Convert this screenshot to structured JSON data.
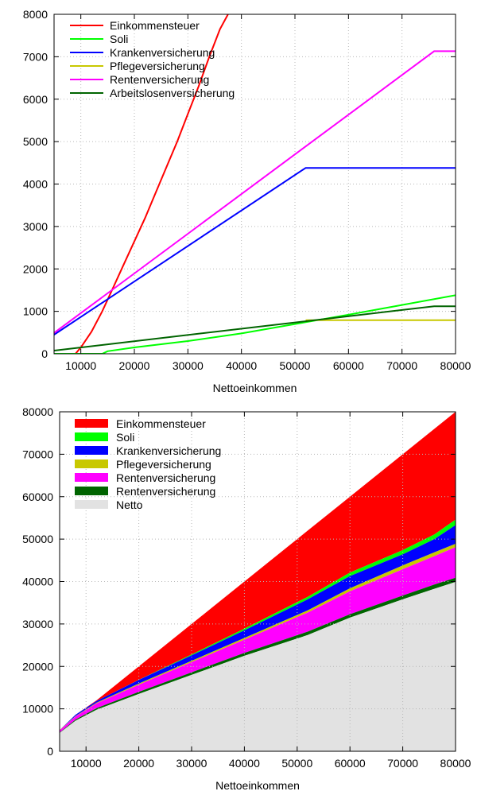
{
  "chart_data": [
    {
      "type": "line",
      "xlabel": "Nettoeinkommen",
      "ylabel": "",
      "xlim": [
        5000,
        80000
      ],
      "ylim": [
        0,
        8000
      ],
      "xticks": [
        "10000",
        "20000",
        "30000",
        "40000",
        "50000",
        "60000",
        "70000",
        "80000"
      ],
      "yticks": [
        "0",
        "1000",
        "2000",
        "3000",
        "4000",
        "5000",
        "6000",
        "7000",
        "8000"
      ],
      "grid": true,
      "legend_position": "top-left",
      "series": [
        {
          "name": "Einkommensteuer",
          "color": "#ff0000",
          "x": [
            9000,
            10000,
            12000,
            14000,
            16000,
            18000,
            20000,
            22000,
            24000,
            26000,
            28000,
            30000,
            32000,
            34000,
            36000,
            37500
          ],
          "y": [
            0,
            150,
            520,
            1000,
            1550,
            2100,
            2650,
            3200,
            3800,
            4400,
            5000,
            5650,
            6300,
            7000,
            7650,
            8000
          ]
        },
        {
          "name": "Soli",
          "color": "#00ff00",
          "x": [
            5000,
            14000,
            15000,
            20000,
            30000,
            40000,
            50000,
            60000,
            70000,
            80000
          ],
          "y": [
            0,
            0,
            60,
            150,
            300,
            480,
            700,
            920,
            1150,
            1380
          ]
        },
        {
          "name": "Krankenversicherung",
          "color": "#0000ff",
          "x": [
            5000,
            52000,
            80000
          ],
          "y": [
            450,
            4380,
            4380
          ]
        },
        {
          "name": "Pflegeversicherung",
          "color": "#c8c800",
          "x": [
            52000,
            80000
          ],
          "y": [
            790,
            790
          ]
        },
        {
          "name": "Rentenversicherung",
          "color": "#ff00ff",
          "x": [
            5000,
            76000,
            80000
          ],
          "y": [
            490,
            7130,
            7130
          ]
        },
        {
          "name": "Arbeitslosenversicherung",
          "color": "#006400",
          "x": [
            5000,
            76000,
            80000
          ],
          "y": [
            75,
            1120,
            1120
          ]
        }
      ]
    },
    {
      "type": "area",
      "xlabel": "Nettoeinkommen",
      "ylabel": "",
      "xlim": [
        5000,
        80000
      ],
      "ylim": [
        0,
        80000
      ],
      "xticks": [
        "10000",
        "20000",
        "30000",
        "40000",
        "50000",
        "60000",
        "70000",
        "80000"
      ],
      "yticks": [
        "0",
        "10000",
        "20000",
        "30000",
        "40000",
        "50000",
        "60000",
        "70000",
        "80000"
      ],
      "grid": true,
      "legend_position": "top-left",
      "x": [
        5000,
        8000,
        12000,
        20000,
        30000,
        40000,
        52000,
        60000,
        70000,
        76000,
        80000
      ],
      "boundaries": {
        "netto": [
          4300,
          7200,
          9800,
          13500,
          18000,
          22500,
          27400,
          31500,
          35800,
          38300,
          39900
        ],
        "arbeitslosen": [
          4400,
          7450,
          10150,
          14000,
          18600,
          23200,
          28200,
          32300,
          36700,
          39300,
          40900
        ],
        "renten": [
          4900,
          8200,
          11300,
          15700,
          21000,
          26300,
          32700,
          37700,
          42900,
          46000,
          48100
        ],
        "pflege": [
          5000,
          8300,
          11450,
          15950,
          21300,
          26700,
          33200,
          38400,
          43800,
          46900,
          48900
        ],
        "kranken": [
          5000,
          8600,
          11850,
          16800,
          22600,
          28500,
          35800,
          41300,
          46400,
          50000,
          53300
        ],
        "soli": [
          5000,
          8600,
          11850,
          16850,
          22800,
          28900,
          36400,
          42100,
          47400,
          51100,
          54600
        ],
        "einkommen": [
          5000,
          8600,
          12000,
          20000,
          30000,
          40000,
          52000,
          60000,
          70000,
          76000,
          80000
        ]
      },
      "series": [
        {
          "name": "Einkommensteuer",
          "color": "#ff0000",
          "key": "einkommen",
          "lower": "soli"
        },
        {
          "name": "Soli",
          "color": "#00ff00",
          "key": "soli",
          "lower": "kranken"
        },
        {
          "name": "Krankenversicherung",
          "color": "#0000ff",
          "key": "kranken",
          "lower": "pflege"
        },
        {
          "name": "Pflegeversicherung",
          "color": "#c8c800",
          "key": "pflege",
          "lower": "renten"
        },
        {
          "name": "Rentenversicherung",
          "color": "#ff00ff",
          "key": "renten",
          "lower": "arbeitslosen"
        },
        {
          "name": "Rentenversicherung",
          "color": "#006400",
          "key": "arbeitslosen",
          "lower": "netto"
        },
        {
          "name": "Netto",
          "color": "#e2e2e2",
          "key": "netto",
          "lower": null
        }
      ]
    }
  ]
}
